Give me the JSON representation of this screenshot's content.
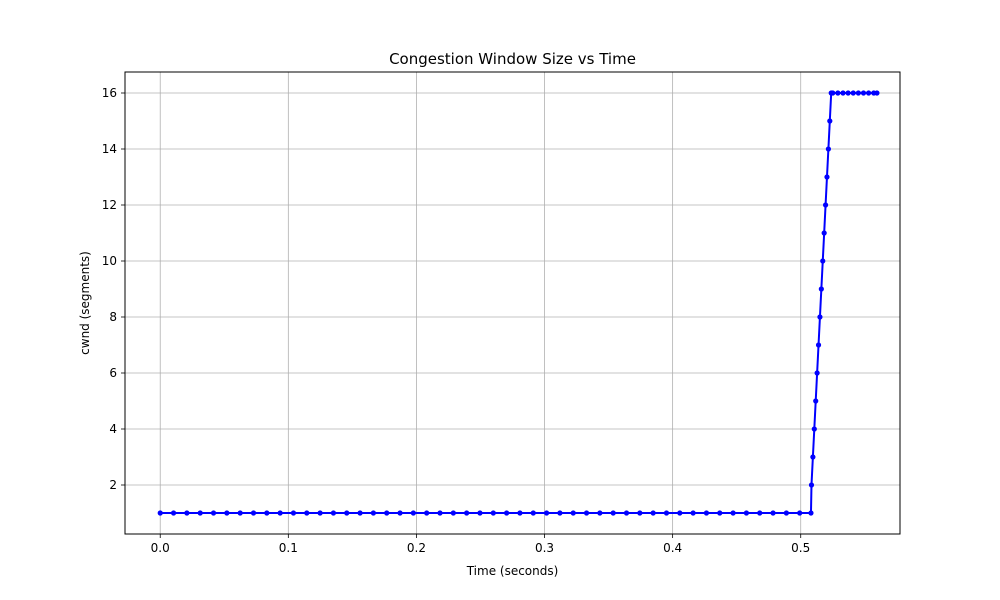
{
  "chart_data": {
    "type": "line",
    "title": "Congestion Window Size vs Time",
    "xlabel": "Time (seconds)",
    "ylabel": "cwnd (segments)",
    "xlim": [
      -0.0275,
      0.5775
    ],
    "ylim": [
      0.25,
      16.75
    ],
    "xticks": [
      0.0,
      0.1,
      0.2,
      0.3,
      0.4,
      0.5
    ],
    "xtick_labels": [
      "0.0",
      "0.1",
      "0.2",
      "0.3",
      "0.4",
      "0.5"
    ],
    "yticks": [
      2,
      4,
      6,
      8,
      10,
      12,
      14,
      16
    ],
    "ytick_labels": [
      "2",
      "4",
      "6",
      "8",
      "10",
      "12",
      "14",
      "16"
    ],
    "grid": true,
    "line_color": "#0000ff",
    "marker": "circle",
    "series": [
      {
        "x": [
          0.0,
          0.0104,
          0.0208,
          0.0312,
          0.0416,
          0.052,
          0.0624,
          0.0728,
          0.0832,
          0.0936,
          0.104,
          0.1144,
          0.1248,
          0.1352,
          0.1456,
          0.156,
          0.1664,
          0.1768,
          0.1872,
          0.1976,
          0.208,
          0.2184,
          0.2288,
          0.2392,
          0.2496,
          0.26,
          0.2704,
          0.2808,
          0.2912,
          0.3016,
          0.312,
          0.3224,
          0.3328,
          0.3432,
          0.3536,
          0.364,
          0.3744,
          0.3848,
          0.3952,
          0.4056,
          0.416,
          0.4264,
          0.4368,
          0.4472,
          0.4576,
          0.468,
          0.4784,
          0.4888,
          0.4992,
          0.508,
          0.5084,
          0.5095,
          0.5106,
          0.5117,
          0.5128,
          0.5139,
          0.515,
          0.5161,
          0.5172,
          0.5183,
          0.5194,
          0.5205,
          0.5216,
          0.5227,
          0.5238,
          0.525,
          0.529,
          0.533,
          0.537,
          0.541,
          0.545,
          0.549,
          0.553,
          0.557,
          0.5595
        ],
        "y": [
          1,
          1,
          1,
          1,
          1,
          1,
          1,
          1,
          1,
          1,
          1,
          1,
          1,
          1,
          1,
          1,
          1,
          1,
          1,
          1,
          1,
          1,
          1,
          1,
          1,
          1,
          1,
          1,
          1,
          1,
          1,
          1,
          1,
          1,
          1,
          1,
          1,
          1,
          1,
          1,
          1,
          1,
          1,
          1,
          1,
          1,
          1,
          1,
          1,
          1,
          2,
          3,
          4,
          5,
          6,
          7,
          8,
          9,
          10,
          11,
          12,
          13,
          14,
          15,
          16,
          16,
          16,
          16,
          16,
          16,
          16,
          16,
          16,
          16,
          16
        ]
      }
    ]
  }
}
